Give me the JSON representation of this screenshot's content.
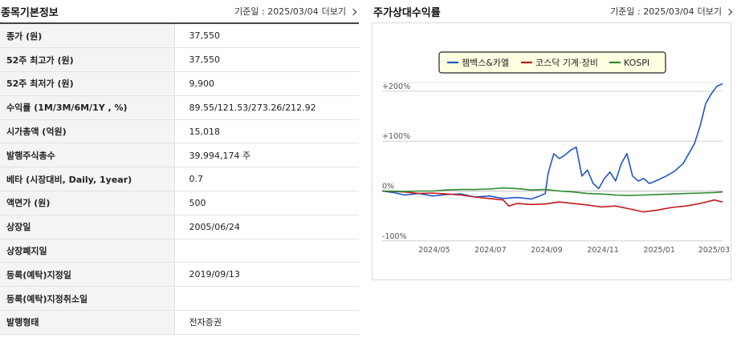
{
  "left": {
    "title": "종목기본정보",
    "meta_date": "기준일 : 2025/03/04",
    "meta_more": "더보기",
    "rows": [
      {
        "label": "종가 (원)",
        "value": "37,550"
      },
      {
        "label": "52주 최고가 (원)",
        "value": "37,550"
      },
      {
        "label": "52주 최저가 (원)",
        "value": "9,900"
      },
      {
        "label": "수익률 (1M/3M/6M/1Y , %)",
        "value": "89.55/121.53/273.26/212.92"
      },
      {
        "label": "시가총액 (억원)",
        "value": "15,018"
      },
      {
        "label": "발행주식총수",
        "value": "39,994,174 주"
      },
      {
        "label": "베타 (시장대비, Daily, 1year)",
        "value": "0.7"
      },
      {
        "label": "액면가 (원)",
        "value": "500"
      },
      {
        "label": "상장일",
        "value": "2005/06/24"
      },
      {
        "label": "상장폐지일",
        "value": ""
      },
      {
        "label": "등록(예탁)지정일",
        "value": "2019/09/13"
      },
      {
        "label": "등록(예탁)지정취소일",
        "value": ""
      },
      {
        "label": "발행형태",
        "value": "전자증권"
      }
    ]
  },
  "right": {
    "title": "주가상대수익률",
    "meta_date": "기준일 : 2025/03/04",
    "meta_more": "더보기"
  },
  "chart_data": {
    "type": "line",
    "title": "",
    "legend_position": "top-center",
    "y_ticks": [
      "+200%",
      "+100%",
      "0%",
      "-100%"
    ],
    "y_tick_values": [
      200,
      100,
      0,
      -100
    ],
    "ylim": [
      -110,
      240
    ],
    "x_ticks": [
      "2024/05",
      "2024/07",
      "2024/09",
      "2024/11",
      "2025/01",
      "2025/03"
    ],
    "x_tick_positions": [
      0.55,
      2.55,
      4.55,
      6.55,
      8.55,
      10.5
    ],
    "xlim": [
      -1.3,
      10.8
    ],
    "series": [
      {
        "name": "젬백스&카엘",
        "color": "#1f56c9",
        "x": [
          -1.3,
          -0.9,
          -0.5,
          0,
          0.5,
          1,
          1.5,
          2,
          2.5,
          3,
          3.5,
          4,
          4.3,
          4.5,
          4.6,
          4.8,
          5.0,
          5.2,
          5.4,
          5.6,
          5.8,
          6.0,
          6.2,
          6.4,
          6.6,
          6.8,
          7.0,
          7.2,
          7.4,
          7.6,
          7.8,
          8.0,
          8.2,
          8.5,
          8.8,
          9.1,
          9.4,
          9.6,
          9.8,
          10.0,
          10.2,
          10.4,
          10.6,
          10.8
        ],
        "y": [
          0,
          -3,
          -8,
          -5,
          -10,
          -7,
          -6,
          -12,
          -10,
          -15,
          -13,
          -16,
          -10,
          -5,
          35,
          75,
          65,
          72,
          82,
          88,
          30,
          42,
          15,
          5,
          25,
          38,
          20,
          55,
          75,
          30,
          20,
          25,
          15,
          22,
          30,
          40,
          55,
          75,
          95,
          130,
          175,
          195,
          210,
          215
        ]
      },
      {
        "name": "코스닥 기계·장비",
        "color": "#c21a1a",
        "x": [
          -1.3,
          -0.5,
          0,
          0.5,
          1,
          1.5,
          2,
          2.5,
          3,
          3.2,
          3.5,
          4,
          4.5,
          5,
          5.5,
          6,
          6.5,
          7,
          7.5,
          8,
          8.5,
          9,
          9.5,
          10,
          10.5,
          10.8
        ],
        "y": [
          0,
          -2,
          -5,
          -4,
          -6,
          -8,
          -12,
          -15,
          -18,
          -30,
          -25,
          -27,
          -26,
          -22,
          -25,
          -28,
          -32,
          -30,
          -36,
          -42,
          -38,
          -33,
          -30,
          -25,
          -18,
          -22
        ]
      },
      {
        "name": "KOSPI",
        "color": "#2e8a2e",
        "x": [
          -1.3,
          -0.5,
          0,
          0.5,
          1,
          1.5,
          2,
          2.5,
          3,
          3.5,
          4,
          4.5,
          5,
          5.5,
          6,
          6.5,
          7,
          7.5,
          8,
          8.5,
          9,
          9.5,
          10,
          10.5,
          10.8
        ],
        "y": [
          0,
          -1,
          0,
          0,
          2,
          3,
          3,
          4,
          6,
          5,
          2,
          3,
          0,
          -2,
          -5,
          -6,
          -8,
          -9,
          -8,
          -7,
          -6,
          -5,
          -4,
          -3,
          -2
        ]
      }
    ]
  }
}
